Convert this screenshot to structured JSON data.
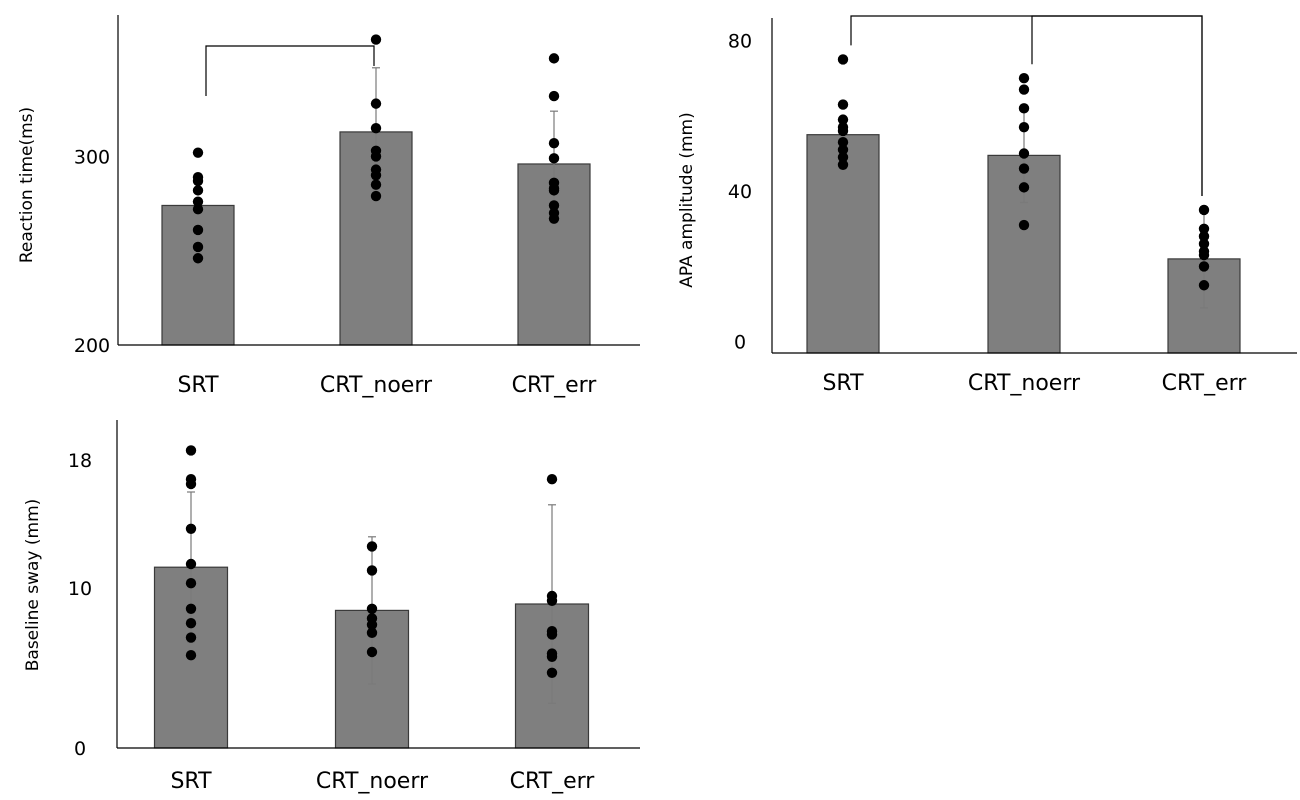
{
  "colors": {
    "bar_fill": "#7f7f7f",
    "bar_stroke": "#3a3a3a",
    "dot": "#000000",
    "axis": "#000000",
    "error": "#7a7a7a"
  },
  "chart_data": [
    {
      "id": "rt",
      "type": "bar",
      "ylabel": "Reaction time(ms)",
      "categories": [
        "SRT",
        "CRT_noerr",
        "CRT_err"
      ],
      "values": [
        274,
        313,
        296
      ],
      "errors": [
        null,
        34,
        28
      ],
      "ylim": [
        200,
        375
      ],
      "yticks": [
        200,
        300
      ],
      "points": [
        [
          302,
          289,
          287,
          282,
          276,
          272,
          261,
          252,
          246
        ],
        [
          362,
          328,
          315,
          303,
          300,
          293,
          290,
          285,
          279
        ],
        [
          352,
          332,
          307,
          299,
          286,
          283,
          282,
          274,
          270,
          267
        ]
      ],
      "significance": [
        {
          "from": "SRT",
          "to": "CRT_noerr"
        }
      ]
    },
    {
      "id": "apa",
      "type": "bar",
      "ylabel": "APA amplitude (mm)",
      "categories": [
        "SRT",
        "CRT_noerr",
        "CRT_err"
      ],
      "values": [
        55,
        49.5,
        22
      ],
      "errors": [
        null,
        12.5,
        13
      ],
      "ylim": [
        -3,
        86
      ],
      "yticks": [
        0,
        40,
        80
      ],
      "points": [
        [
          75,
          63,
          59,
          57,
          56,
          53,
          51,
          49,
          47
        ],
        [
          70,
          67,
          62,
          57,
          50,
          46,
          41,
          31
        ],
        [
          35,
          30,
          28,
          26,
          24,
          23,
          20,
          15
        ]
      ],
      "significance": [
        {
          "from": "SRT",
          "to": "CRT_err"
        },
        {
          "from": "CRT_noerr",
          "to": "CRT_err"
        }
      ]
    },
    {
      "id": "sway",
      "type": "bar",
      "ylabel": "Baseline sway (mm)",
      "categories": [
        "SRT",
        "CRT_noerr",
        "CRT_err"
      ],
      "values": [
        11.3,
        8.6,
        9.0
      ],
      "errors": [
        4.7,
        4.6,
        6.2
      ],
      "ylim": [
        0,
        20.5
      ],
      "yticks": [
        0,
        10,
        18
      ],
      "points": [
        [
          18.6,
          16.8,
          16.5,
          13.7,
          11.5,
          10.3,
          8.7,
          7.8,
          6.9,
          5.8
        ],
        [
          12.6,
          11.1,
          8.7,
          8.1,
          7.7,
          7.2,
          6.0
        ],
        [
          16.8,
          9.5,
          9.2,
          7.3,
          7.1,
          5.9,
          5.7,
          4.7
        ]
      ],
      "significance": []
    }
  ]
}
